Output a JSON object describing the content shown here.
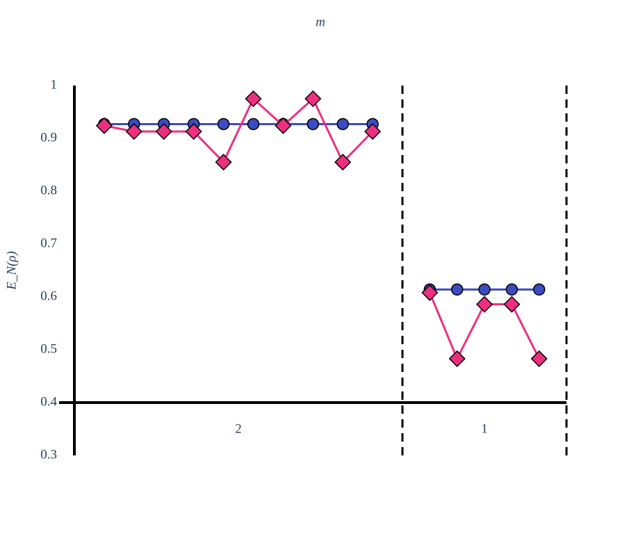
{
  "chart_data": {
    "type": "line",
    "x_label": "m",
    "y_label": "E_N(ρ)",
    "ylim": [
      0.3,
      1
    ],
    "yticks": [
      0.3,
      0.4,
      0.5,
      0.6,
      0.7,
      0.8,
      0.9,
      1
    ],
    "series": [
      {
        "color": "#3b4cc0",
        "marker": "circle"
      },
      {
        "color": "#ee2f7f",
        "marker": "diamond"
      }
    ],
    "groups": [
      {
        "label": "2",
        "series_values": [
          [
            0.927,
            0.927,
            0.927,
            0.927,
            0.927,
            0.927,
            0.927,
            0.927,
            0.927,
            0.927
          ],
          [
            0.924,
            0.913,
            0.913,
            0.913,
            0.855,
            0.975,
            0.924,
            0.975,
            0.855,
            0.913
          ]
        ]
      },
      {
        "label": "1",
        "series_values": [
          [
            0.614,
            0.614,
            0.614,
            0.614,
            0.614
          ],
          [
            0.608,
            0.483,
            0.586,
            0.586,
            0.483
          ]
        ]
      }
    ]
  }
}
